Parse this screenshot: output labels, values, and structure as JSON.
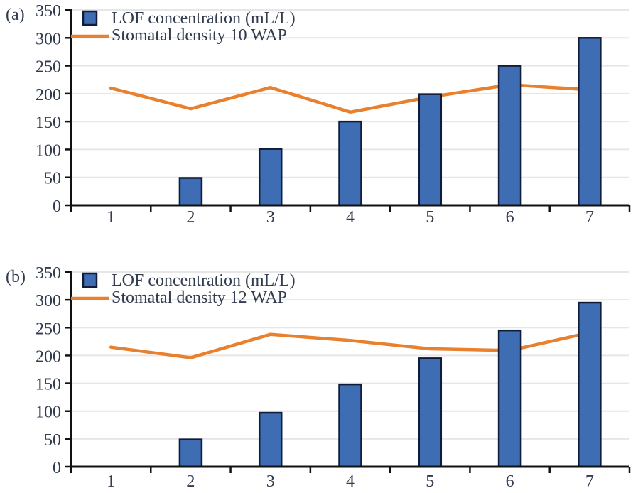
{
  "figure": {
    "description": "Two stacked combo charts of LOF concentration bars with stomatal density lines",
    "panel_count": 2
  },
  "colors": {
    "background": "#ffffff",
    "bar_fill": "#3e6db4",
    "bar_border": "#101c38",
    "line": "#e8802e",
    "grid": "#e6e6e6",
    "axis": "#111111",
    "text": "#323c4f"
  },
  "chart_data": [
    {
      "id": "a",
      "panel_label": "(a)",
      "type": "bar",
      "categories": [
        "1",
        "2",
        "3",
        "4",
        "5",
        "6",
        "7"
      ],
      "series": [
        {
          "name": "LOF concentration (mL/L)",
          "type": "bar",
          "values": [
            0,
            49,
            101,
            150,
            199,
            250,
            300
          ]
        },
        {
          "name": "Stomatal density 10 WAP",
          "type": "line",
          "values": [
            210,
            173,
            211,
            167,
            194,
            216,
            207
          ]
        }
      ],
      "xlabel": "",
      "ylabel": "",
      "ylim": [
        0,
        350
      ],
      "ytick_step": 50,
      "grid": true,
      "legend_position": "top-left"
    },
    {
      "id": "b",
      "panel_label": "(b)",
      "type": "bar",
      "categories": [
        "1",
        "2",
        "3",
        "4",
        "5",
        "6",
        "7"
      ],
      "series": [
        {
          "name": "LOF concentration (mL/L)",
          "type": "bar",
          "values": [
            0,
            49,
            97,
            148,
            195,
            245,
            295
          ]
        },
        {
          "name": "Stomatal density 12 WAP",
          "type": "line",
          "values": [
            215,
            196,
            238,
            227,
            212,
            209,
            241
          ]
        }
      ],
      "xlabel": "",
      "ylabel": "",
      "ylim": [
        0,
        350
      ],
      "ytick_step": 50,
      "grid": true,
      "legend_position": "top-left"
    }
  ]
}
